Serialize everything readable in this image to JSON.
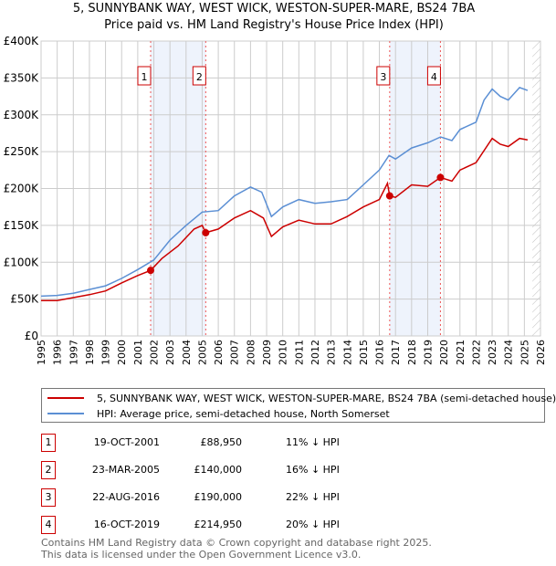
{
  "chart_data": {
    "type": "line",
    "title": "5, SUNNYBANK WAY, WEST WICK, WESTON-SUPER-MARE, BS24 7BA",
    "subtitle": "Price paid vs. HM Land Registry's House Price Index (HPI)",
    "xlim": [
      1995,
      2026
    ],
    "ylim": [
      0,
      400000
    ],
    "x_ticks": [
      "1995",
      "1996",
      "1997",
      "1998",
      "1999",
      "2000",
      "2001",
      "2002",
      "2003",
      "2004",
      "2005",
      "2006",
      "2007",
      "2008",
      "2009",
      "2010",
      "2011",
      "2012",
      "2013",
      "2014",
      "2015",
      "2016",
      "2017",
      "2018",
      "2019",
      "2020",
      "2021",
      "2022",
      "2023",
      "2024",
      "2025",
      "2026"
    ],
    "y_ticks": [
      {
        "v": 0,
        "label": "£0"
      },
      {
        "v": 50000,
        "label": "£50K"
      },
      {
        "v": 100000,
        "label": "£100K"
      },
      {
        "v": 150000,
        "label": "£150K"
      },
      {
        "v": 200000,
        "label": "£200K"
      },
      {
        "v": 250000,
        "label": "£250K"
      },
      {
        "v": 300000,
        "label": "£300K"
      },
      {
        "v": 350000,
        "label": "£350K"
      },
      {
        "v": 400000,
        "label": "£400K"
      }
    ],
    "grid": true,
    "forecast_hatch_from": 2025.5,
    "shaded_ranges": [
      [
        2001.8,
        2005.22
      ],
      [
        2016.64,
        2019.79
      ]
    ],
    "series": [
      {
        "name": "5, SUNNYBANK WAY, WEST WICK, WESTON-SUPER-MARE, BS24 7BA (semi-detached house)",
        "color": "#cc0000",
        "x": [
          1995,
          1996,
          1997,
          1998,
          1999,
          2000,
          2001,
          2001.8,
          2002.5,
          2003.5,
          2004.5,
          2005,
          2005.22,
          2006,
          2007,
          2008,
          2008.8,
          2009.3,
          2010,
          2011,
          2012,
          2013,
          2014,
          2015,
          2016,
          2016.5,
          2016.64,
          2017,
          2018,
          2019,
          2019.79,
          2020.5,
          2021,
          2022,
          2023,
          2023.5,
          2024,
          2024.7,
          2025.2
        ],
        "y": [
          48000,
          48000,
          52000,
          56000,
          61000,
          72000,
          82000,
          88950,
          105000,
          122000,
          145000,
          150000,
          140000,
          145000,
          160000,
          170000,
          160000,
          135000,
          148000,
          157000,
          152000,
          152000,
          162000,
          175000,
          185000,
          207000,
          190000,
          188000,
          205000,
          203000,
          214950,
          210000,
          225000,
          235000,
          268000,
          260000,
          257000,
          268000,
          266000
        ]
      },
      {
        "name": "HPI: Average price, semi-detached house, North Somerset",
        "color": "#5b8fd4",
        "x": [
          1995,
          1996,
          1997,
          1998,
          1999,
          2000,
          2001,
          2002,
          2003,
          2004,
          2005,
          2006,
          2007,
          2008,
          2008.7,
          2009.3,
          2010,
          2011,
          2012,
          2013,
          2014,
          2015,
          2016,
          2016.6,
          2017,
          2018,
          2019,
          2019.8,
          2020.5,
          2021,
          2022,
          2022.5,
          2023,
          2023.5,
          2024,
          2024.7,
          2025.2
        ],
        "y": [
          54000,
          55000,
          58000,
          63000,
          68000,
          78000,
          90000,
          103000,
          130000,
          150000,
          168000,
          170000,
          190000,
          202000,
          195000,
          162000,
          175000,
          185000,
          180000,
          182000,
          185000,
          205000,
          225000,
          245000,
          240000,
          255000,
          262000,
          270000,
          265000,
          280000,
          290000,
          320000,
          335000,
          325000,
          320000,
          337000,
          333000
        ]
      }
    ],
    "sales": [
      {
        "id": "1",
        "date": "19-OCT-2001",
        "price": "£88,950",
        "x": 2001.8,
        "y": 88950,
        "hpi": "11% ↓ HPI"
      },
      {
        "id": "2",
        "date": "23-MAR-2005",
        "price": "£140,000",
        "x": 2005.22,
        "y": 140000,
        "hpi": "16% ↓ HPI"
      },
      {
        "id": "3",
        "date": "22-AUG-2016",
        "price": "£190,000",
        "x": 2016.64,
        "y": 190000,
        "hpi": "22% ↓ HPI"
      },
      {
        "id": "4",
        "date": "16-OCT-2019",
        "price": "£214,950",
        "x": 2019.79,
        "y": 214950,
        "hpi": "20% ↓ HPI"
      }
    ]
  },
  "footer": {
    "line1": "Contains HM Land Registry data © Crown copyright and database right 2025.",
    "line2": "This data is licensed under the Open Government Licence v3.0."
  }
}
